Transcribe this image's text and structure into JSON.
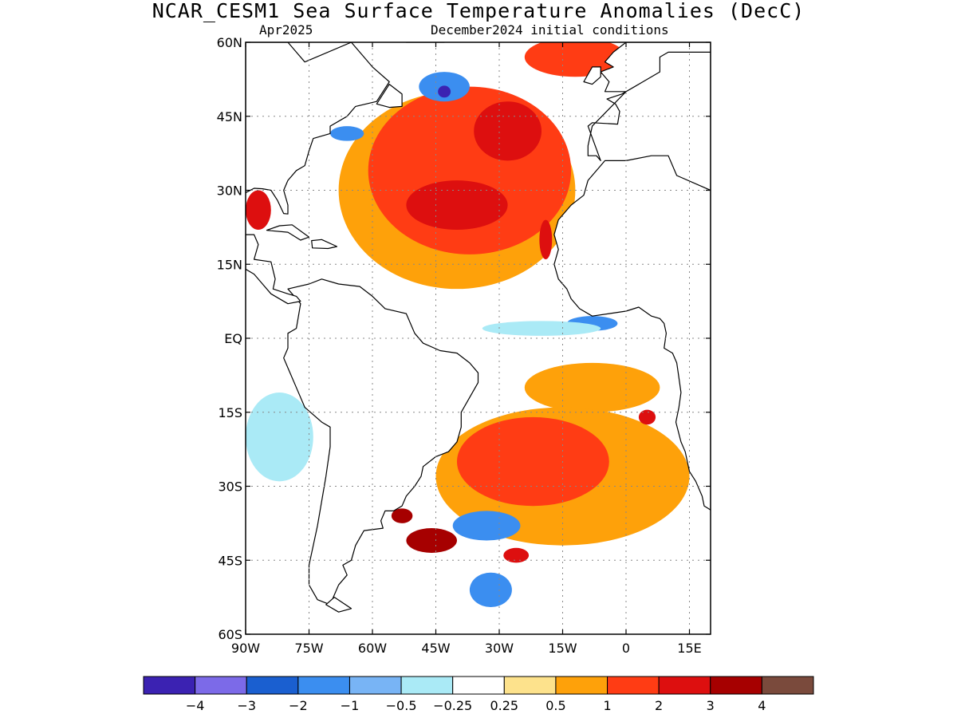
{
  "map": {
    "title": "NCAR_CESM1 Sea Surface Temperature Anomalies (DecC)",
    "valid_month": "Apr2025",
    "init_label": "December2024 initial conditions",
    "extent": {
      "lon": [
        -90,
        20
      ],
      "lat": [
        -60,
        60
      ]
    },
    "lat_ticks": [
      "60N",
      "45N",
      "30N",
      "15N",
      "EQ",
      "15S",
      "30S",
      "45S",
      "60S"
    ],
    "lat_tick_values": [
      60,
      45,
      30,
      15,
      0,
      -15,
      -30,
      -45,
      -60
    ],
    "lon_ticks": [
      "90W",
      "75W",
      "60W",
      "45W",
      "30W",
      "15W",
      "0",
      "15E"
    ],
    "lon_tick_values": [
      -90,
      -75,
      -60,
      -45,
      -30,
      -15,
      0,
      15
    ],
    "grid": true
  },
  "colorbar": {
    "colors": [
      "#3b22b2",
      "#7c6ae8",
      "#1a5fd0",
      "#3b8ef0",
      "#78b4f5",
      "#aaeaf6",
      "#ffffff",
      "#fde28c",
      "#fea10a",
      "#ff3c14",
      "#dd0f0f",
      "#a60000",
      "#7a4a3c"
    ],
    "labels": [
      "-4",
      "-3",
      "-2",
      "-1",
      "-0.5",
      "-0.25",
      "0.25",
      "0.5",
      "1",
      "2",
      "3",
      "4"
    ]
  },
  "anomaly_regions": [
    {
      "level": "0.5",
      "lon": -40,
      "lat": 30,
      "rx": 28,
      "ry": 20
    },
    {
      "level": "1",
      "lon": -37,
      "lat": 34,
      "rx": 24,
      "ry": 17
    },
    {
      "level": "2",
      "lon": -40,
      "lat": 27,
      "rx": 12,
      "ry": 5
    },
    {
      "level": "2",
      "lon": -28,
      "lat": 42,
      "rx": 8,
      "ry": 6
    },
    {
      "level": "1",
      "lon": -12,
      "lat": 57,
      "rx": 12,
      "ry": 4
    },
    {
      "level": "-1",
      "lon": -43,
      "lat": 51,
      "rx": 6,
      "ry": 3
    },
    {
      "level": "-4",
      "lon": -43,
      "lat": 50,
      "rx": 1.5,
      "ry": 1.2
    },
    {
      "level": "-1",
      "lon": -66,
      "lat": 41.5,
      "rx": 4,
      "ry": 1.5
    },
    {
      "level": "2",
      "lon": -19,
      "lat": 20,
      "rx": 1.5,
      "ry": 4
    },
    {
      "level": "-1",
      "lon": -8,
      "lat": 3,
      "rx": 6,
      "ry": 1.5
    },
    {
      "level": "-0.25",
      "lon": -20,
      "lat": 2,
      "rx": 14,
      "ry": 1.5
    },
    {
      "level": "0.5",
      "lon": -8,
      "lat": -10,
      "rx": 16,
      "ry": 5
    },
    {
      "level": "0.5",
      "lon": -15,
      "lat": -28,
      "rx": 30,
      "ry": 14
    },
    {
      "level": "1",
      "lon": -22,
      "lat": -25,
      "rx": 18,
      "ry": 9
    },
    {
      "level": "2",
      "lon": 5,
      "lat": -16,
      "rx": 2,
      "ry": 1.5
    },
    {
      "level": "-1",
      "lon": -33,
      "lat": -38,
      "rx": 8,
      "ry": 3
    },
    {
      "level": "-1",
      "lon": -32,
      "lat": -51,
      "rx": 5,
      "ry": 3.5
    },
    {
      "level": "3",
      "lon": -46,
      "lat": -41,
      "rx": 6,
      "ry": 2.5
    },
    {
      "level": "3",
      "lon": -53,
      "lat": -36,
      "rx": 2.5,
      "ry": 1.5
    },
    {
      "level": "2",
      "lon": -26,
      "lat": -44,
      "rx": 3,
      "ry": 1.5
    },
    {
      "level": "-0.25",
      "lon": -82,
      "lat": -20,
      "rx": 8,
      "ry": 9
    },
    {
      "level": "2",
      "lon": -87,
      "lat": 26,
      "rx": 3,
      "ry": 4
    }
  ]
}
